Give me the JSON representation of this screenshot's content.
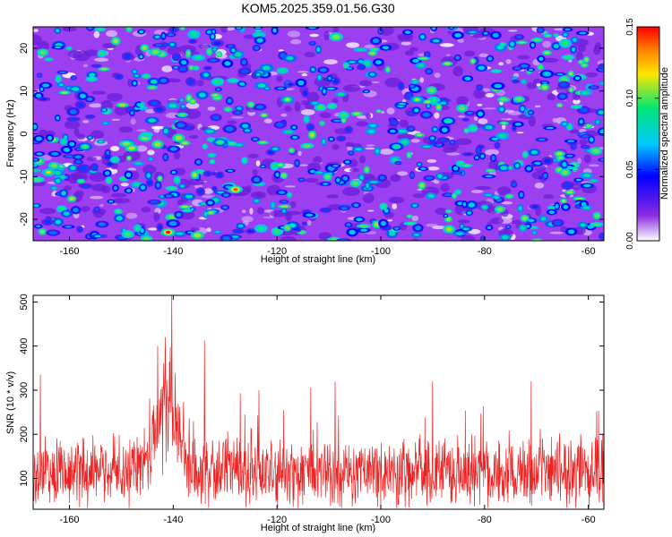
{
  "title": "KOM5.2025.359.01.56.G30",
  "colors": {
    "background": "#ffffff",
    "axis": "#000000",
    "snr_line": "#ee2222",
    "colormap": [
      "#ffffff",
      "#8a2be2",
      "#0000ff",
      "#00c8ff",
      "#00e676",
      "#ffe600",
      "#ff8c00",
      "#ff0000"
    ]
  },
  "chart_data": [
    {
      "type": "heatmap",
      "title": "KOM5.2025.359.01.56.G30",
      "xlabel": "Height of straight line (km)",
      "ylabel": "Frequency (Hz)",
      "xlim": [
        -167,
        -57
      ],
      "ylim": [
        -25,
        25
      ],
      "x_ticks": [
        -160,
        -140,
        -120,
        -100,
        -80,
        -60
      ],
      "y_ticks": [
        -20,
        -10,
        0,
        10,
        20
      ],
      "colorbar": {
        "label": "Normalized spectral amplitude",
        "range": [
          0.0,
          0.15
        ],
        "ticks": [
          0.0,
          0.05,
          0.1,
          0.15
        ],
        "tick_labels": [
          "0.00",
          "0.05",
          "0.10",
          "0.15"
        ]
      },
      "hotspots": [
        {
          "x": -141,
          "y": -23,
          "value": 0.15
        },
        {
          "x": -128,
          "y": -13,
          "value": 0.14
        },
        {
          "x": -164,
          "y": -9,
          "value": 0.12
        },
        {
          "x": -118,
          "y": 8,
          "value": 0.11
        },
        {
          "x": -93,
          "y": 8,
          "value": 0.11
        },
        {
          "x": -131,
          "y": -2,
          "value": 0.1
        },
        {
          "x": -157,
          "y": -3,
          "value": 0.1
        },
        {
          "x": -87,
          "y": 3,
          "value": 0.09
        },
        {
          "x": -97,
          "y": -3,
          "value": 0.09
        },
        {
          "x": -68,
          "y": 14,
          "value": 0.08
        }
      ]
    },
    {
      "type": "line",
      "xlabel": "Height of straight line (km)",
      "ylabel": "SNR (10 * v/v)",
      "xlim": [
        -167,
        -57
      ],
      "ylim": [
        30,
        515
      ],
      "x_ticks": [
        -160,
        -140,
        -120,
        -100,
        -80,
        -60
      ],
      "y_ticks": [
        100,
        200,
        300,
        400,
        500
      ],
      "series": [
        {
          "name": "SNR",
          "summary": {
            "baseline": 115,
            "typical_spread": 80,
            "peak_x": -140,
            "peak_value": 515
          },
          "notable_peaks": [
            {
              "x": -140.3,
              "y": 515
            },
            {
              "x": -141.5,
              "y": 420
            },
            {
              "x": -134,
              "y": 412
            },
            {
              "x": -143,
              "y": 400
            },
            {
              "x": -165.6,
              "y": 335
            },
            {
              "x": -123.5,
              "y": 300
            },
            {
              "x": -113.5,
              "y": 305
            },
            {
              "x": -90,
              "y": 320
            },
            {
              "x": -71,
              "y": 320
            }
          ]
        }
      ]
    }
  ]
}
